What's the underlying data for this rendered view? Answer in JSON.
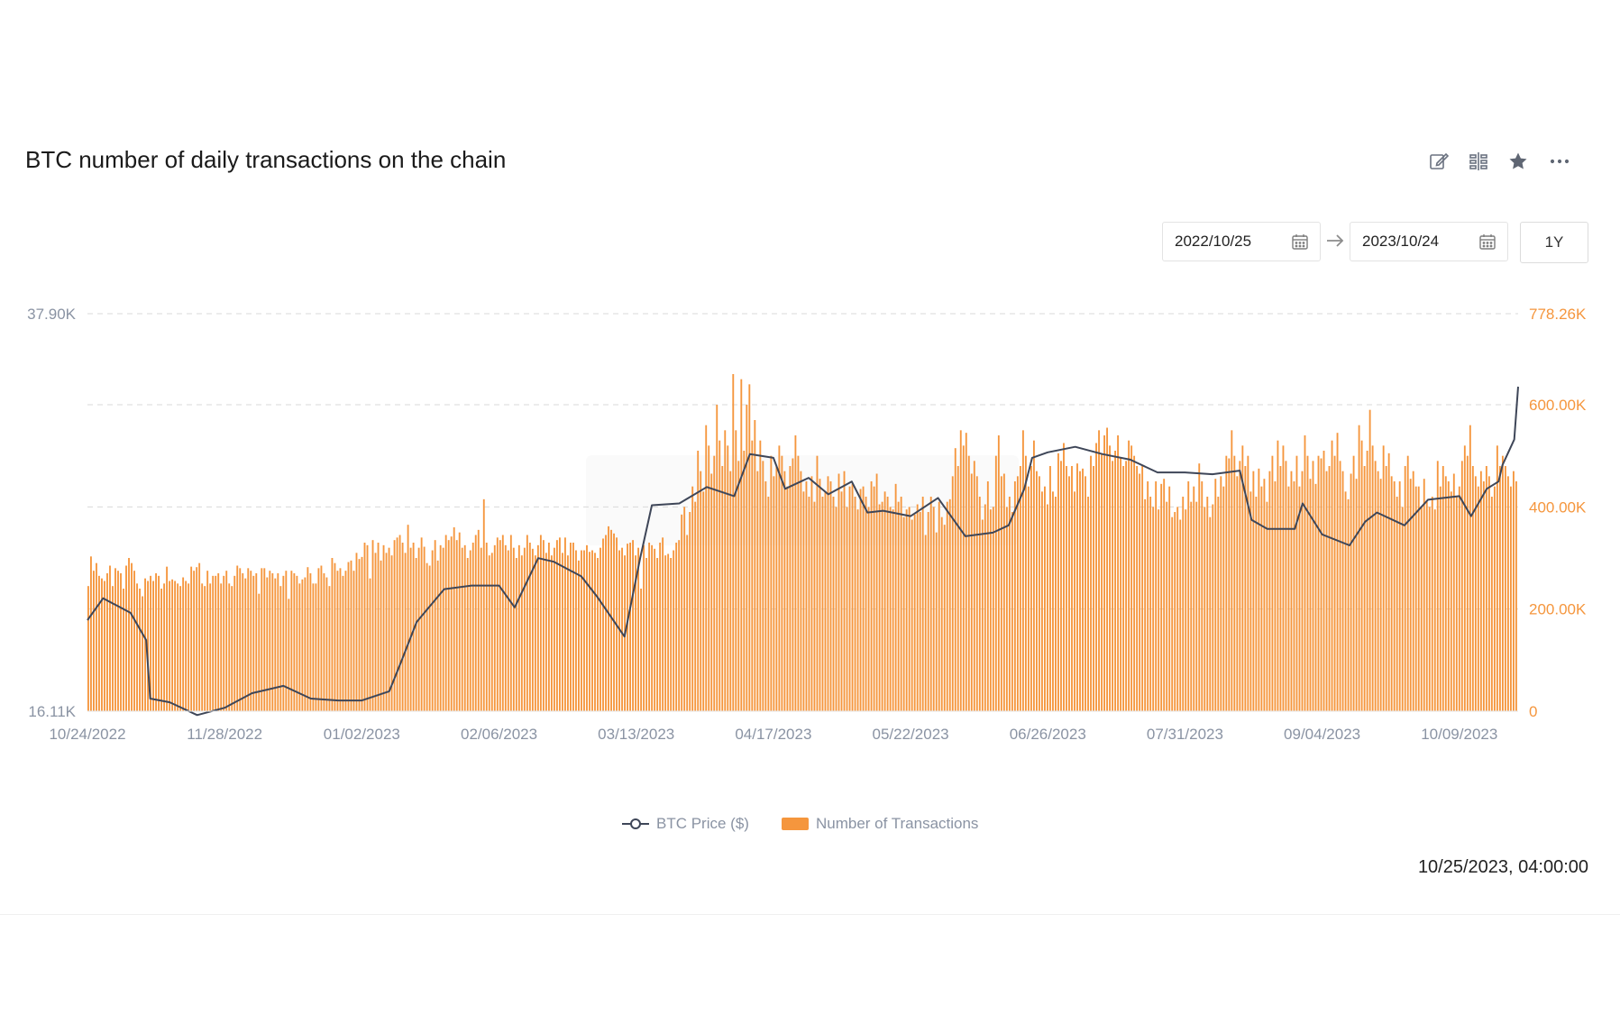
{
  "header": {
    "title": "BTC number of daily transactions on the chain"
  },
  "toolbar": {
    "icons": [
      "edit-icon",
      "compare-icon",
      "star-icon",
      "more-icon"
    ]
  },
  "date_range": {
    "start": "2022/10/25",
    "end": "2023/10/24",
    "preset": "1Y"
  },
  "timestamp": "10/25/2023, 04:00:00",
  "colors": {
    "bars": "#f5963d",
    "line": "#3e4658",
    "right_axis": "#f5963d",
    "left_axis": "#8a93a3",
    "grid": "#d9d9d9"
  },
  "chart_data": {
    "type": "bar",
    "x_start": "10/24/2022",
    "x_end": "10/24/2023",
    "xtick_labels": [
      "10/24/2022",
      "11/28/2022",
      "01/02/2023",
      "02/06/2023",
      "03/13/2023",
      "04/17/2023",
      "05/22/2023",
      "06/26/2023",
      "07/31/2023",
      "09/04/2023",
      "10/09/2023"
    ],
    "y_left": {
      "min": 16110,
      "max": 37900,
      "tick_labels": [
        "37.90K",
        "16.11K"
      ]
    },
    "y_right": {
      "min": 0,
      "max": 778260,
      "tick_labels": [
        "778.26K",
        "600.00K",
        "400.00K",
        "200.00K",
        "0"
      ]
    },
    "grid": true,
    "legend_position": "bottom",
    "series": [
      {
        "name": "BTC Price ($)",
        "kind": "line",
        "axis": "left",
        "points": [
          [
            "10/24/2022",
            21100
          ],
          [
            "10/28/2022",
            22300
          ],
          [
            "11/04/2022",
            21500
          ],
          [
            "11/08/2022",
            20000
          ],
          [
            "11/09/2022",
            16800
          ],
          [
            "11/14/2022",
            16600
          ],
          [
            "11/21/2022",
            15900
          ],
          [
            "11/28/2022",
            16300
          ],
          [
            "12/05/2022",
            17100
          ],
          [
            "12/13/2022",
            17500
          ],
          [
            "12/20/2022",
            16800
          ],
          [
            "12/27/2022",
            16700
          ],
          [
            "01/02/2023",
            16700
          ],
          [
            "01/09/2023",
            17200
          ],
          [
            "01/12/2023",
            18800
          ],
          [
            "01/16/2023",
            21000
          ],
          [
            "01/23/2023",
            22800
          ],
          [
            "01/30/2023",
            23000
          ],
          [
            "02/06/2023",
            23000
          ],
          [
            "02/10/2023",
            21800
          ],
          [
            "02/16/2023",
            24500
          ],
          [
            "02/20/2023",
            24300
          ],
          [
            "02/27/2023",
            23500
          ],
          [
            "03/03/2023",
            22400
          ],
          [
            "03/10/2023",
            20200
          ],
          [
            "03/14/2023",
            24500
          ],
          [
            "03/17/2023",
            27400
          ],
          [
            "03/24/2023",
            27500
          ],
          [
            "03/31/2023",
            28400
          ],
          [
            "04/07/2023",
            27900
          ],
          [
            "04/11/2023",
            30200
          ],
          [
            "04/17/2023",
            30000
          ],
          [
            "04/20/2023",
            28300
          ],
          [
            "04/26/2023",
            28900
          ],
          [
            "05/01/2023",
            28000
          ],
          [
            "05/07/2023",
            28700
          ],
          [
            "05/11/2023",
            27000
          ],
          [
            "05/15/2023",
            27100
          ],
          [
            "05/22/2023",
            26800
          ],
          [
            "05/29/2023",
            27800
          ],
          [
            "06/05/2023",
            25700
          ],
          [
            "06/12/2023",
            25900
          ],
          [
            "06/16/2023",
            26300
          ],
          [
            "06/20/2023",
            28300
          ],
          [
            "06/22/2023",
            30000
          ],
          [
            "06/26/2023",
            30300
          ],
          [
            "07/03/2023",
            30600
          ],
          [
            "07/10/2023",
            30200
          ],
          [
            "07/17/2023",
            29900
          ],
          [
            "07/24/2023",
            29200
          ],
          [
            "07/31/2023",
            29200
          ],
          [
            "08/07/2023",
            29100
          ],
          [
            "08/14/2023",
            29300
          ],
          [
            "08/17/2023",
            26600
          ],
          [
            "08/21/2023",
            26100
          ],
          [
            "08/28/2023",
            26100
          ],
          [
            "08/30/2023",
            27500
          ],
          [
            "09/04/2023",
            25800
          ],
          [
            "09/11/2023",
            25200
          ],
          [
            "09/15/2023",
            26500
          ],
          [
            "09/18/2023",
            27000
          ],
          [
            "09/25/2023",
            26300
          ],
          [
            "10/01/2023",
            27700
          ],
          [
            "10/09/2023",
            27900
          ],
          [
            "10/12/2023",
            26800
          ],
          [
            "10/16/2023",
            28300
          ],
          [
            "10/19/2023",
            28700
          ],
          [
            "10/20/2023",
            29600
          ],
          [
            "10/23/2023",
            31000
          ],
          [
            "10/24/2023",
            33900
          ]
        ]
      },
      {
        "name": "Number of Transactions",
        "kind": "bar",
        "axis": "right",
        "daily_values": [
          245000,
          303000,
          275000,
          290000,
          265000,
          260000,
          255000,
          270000,
          285000,
          245000,
          280000,
          275000,
          270000,
          240000,
          285000,
          300000,
          290000,
          275000,
          250000,
          240000,
          225000,
          260000,
          255000,
          265000,
          255000,
          270000,
          265000,
          240000,
          250000,
          283000,
          255000,
          258000,
          255000,
          250000,
          245000,
          262000,
          255000,
          250000,
          283000,
          275000,
          282000,
          290000,
          250000,
          245000,
          275000,
          250000,
          265000,
          265000,
          270000,
          250000,
          265000,
          275000,
          250000,
          245000,
          265000,
          285000,
          280000,
          270000,
          260000,
          280000,
          275000,
          265000,
          270000,
          230000,
          280000,
          280000,
          262000,
          275000,
          270000,
          260000,
          270000,
          245000,
          265000,
          275000,
          220000,
          275000,
          270000,
          265000,
          250000,
          258000,
          262000,
          282000,
          270000,
          250000,
          250000,
          280000,
          285000,
          270000,
          262000,
          245000,
          300000,
          290000,
          275000,
          280000,
          265000,
          275000,
          292000,
          295000,
          275000,
          310000,
          298000,
          302000,
          330000,
          325000,
          260000,
          335000,
          310000,
          330000,
          295000,
          325000,
          310000,
          320000,
          305000,
          335000,
          340000,
          345000,
          330000,
          310000,
          365000,
          320000,
          330000,
          300000,
          320000,
          340000,
          322000,
          290000,
          285000,
          315000,
          335000,
          295000,
          325000,
          320000,
          345000,
          335000,
          342000,
          360000,
          335000,
          350000,
          320000,
          325000,
          300000,
          315000,
          330000,
          345000,
          355000,
          320000,
          415000,
          330000,
          305000,
          310000,
          325000,
          340000,
          335000,
          345000,
          325000,
          315000,
          345000,
          320000,
          300000,
          325000,
          305000,
          320000,
          345000,
          330000,
          318000,
          305000,
          325000,
          345000,
          335000,
          310000,
          330000,
          305000,
          320000,
          335000,
          340000,
          310000,
          340000,
          305000,
          330000,
          330000,
          315000,
          295000,
          315000,
          315000,
          325000,
          312000,
          315000,
          310000,
          300000,
          320000,
          338000,
          345000,
          362000,
          355000,
          348000,
          340000,
          315000,
          320000,
          305000,
          328000,
          330000,
          335000,
          305000,
          320000,
          240000,
          325000,
          300000,
          330000,
          325000,
          318000,
          300000,
          330000,
          340000,
          305000,
          308000,
          300000,
          315000,
          330000,
          335000,
          385000,
          400000,
          345000,
          390000,
          440000,
          410000,
          510000,
          470000,
          430000,
          560000,
          520000,
          465000,
          500000,
          600000,
          530000,
          480000,
          550000,
          520000,
          470000,
          660000,
          550000,
          490000,
          650000,
          510000,
          600000,
          640000,
          530000,
          570000,
          470000,
          530000,
          490000,
          450000,
          420000,
          500000,
          460000,
          480000,
          520000,
          500000,
          470000,
          440000,
          480000,
          495000,
          540000,
          500000,
          470000,
          430000,
          450000,
          420000,
          460000,
          410000,
          500000,
          455000,
          420000,
          430000,
          460000,
          450000,
          420000,
          400000,
          465000,
          430000,
          470000,
          400000,
          440000,
          445000,
          420000,
          395000,
          435000,
          440000,
          420000,
          400000,
          450000,
          440000,
          465000,
          405000,
          410000,
          430000,
          420000,
          400000,
          395000,
          445000,
          410000,
          420000,
          380000,
          395000,
          400000,
          375000,
          385000,
          405000,
          390000,
          420000,
          345000,
          390000,
          420000,
          400000,
          350000,
          410000,
          380000,
          365000,
          410000,
          415000,
          460000,
          515000,
          480000,
          550000,
          520000,
          545000,
          500000,
          465000,
          490000,
          460000,
          420000,
          375000,
          405000,
          450000,
          395000,
          400000,
          500000,
          540000,
          460000,
          465000,
          400000,
          420000,
          390000,
          450000,
          460000,
          480000,
          550000,
          500000,
          440000,
          480000,
          530000,
          470000,
          460000,
          430000,
          440000,
          405000,
          480000,
          430000,
          420000,
          505000,
          490000,
          525000,
          480000,
          460000,
          480000,
          430000,
          485000,
          470000,
          475000,
          460000,
          420000,
          500000,
          480000,
          525000,
          550000,
          505000,
          540000,
          555000,
          520000,
          490000,
          510000,
          540000,
          495000,
          480000,
          490000,
          530000,
          520000,
          500000,
          480000,
          465000,
          480000,
          415000,
          450000,
          420000,
          400000,
          450000,
          395000,
          445000,
          455000,
          410000,
          440000,
          380000,
          390000,
          400000,
          375000,
          420000,
          395000,
          450000,
          410000,
          440000,
          410000,
          485000,
          450000,
          400000,
          420000,
          380000,
          405000,
          455000,
          420000,
          460000,
          440000,
          500000,
          495000,
          550000,
          500000,
          460000,
          490000,
          520000,
          480000,
          500000,
          430000,
          470000,
          420000,
          475000,
          440000,
          455000,
          410000,
          470000,
          500000,
          450000,
          530000,
          480000,
          520000,
          490000,
          440000,
          470000,
          450000,
          500000,
          440000,
          470000,
          540000,
          500000,
          455000,
          490000,
          445000,
          500000,
          495000,
          510000,
          470000,
          480000,
          530000,
          500000,
          545000,
          490000,
          470000,
          430000,
          415000,
          465000,
          500000,
          455000,
          560000,
          530000,
          480000,
          510000,
          590000,
          520000,
          490000,
          470000,
          455000,
          520000,
          480000,
          505000,
          460000,
          450000,
          420000,
          450000,
          400000,
          480000,
          500000,
          455000,
          470000,
          440000,
          440000,
          400000,
          455000,
          410000,
          400000,
          420000,
          395000,
          490000,
          440000,
          480000,
          460000,
          450000,
          430000,
          465000,
          420000,
          440000,
          490000,
          520000,
          500000,
          560000,
          480000,
          460000,
          440000,
          470000,
          450000,
          480000,
          460000,
          420000,
          440000,
          520000,
          480000,
          500000,
          480000,
          460000,
          440000,
          470000,
          450000
        ]
      }
    ]
  },
  "legend": {
    "line_label": "BTC Price ($)",
    "bar_label": "Number of Transactions"
  }
}
